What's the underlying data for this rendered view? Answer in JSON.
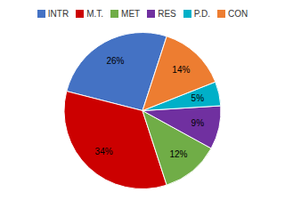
{
  "chart_data": {
    "type": "pie",
    "categories": [
      "INTR",
      "M.T.",
      "MET",
      "RES",
      "P.D.",
      "CON"
    ],
    "values": [
      26,
      34,
      12,
      9,
      5,
      14
    ],
    "value_labels": [
      "26%",
      "34%",
      "12%",
      "9%",
      "5%",
      "14%"
    ],
    "colors": [
      "#4472C4",
      "#CC0000",
      "#70AD47",
      "#7030A0",
      "#00B0C8",
      "#ED7D31"
    ],
    "data_labels": true,
    "legend": "top"
  }
}
